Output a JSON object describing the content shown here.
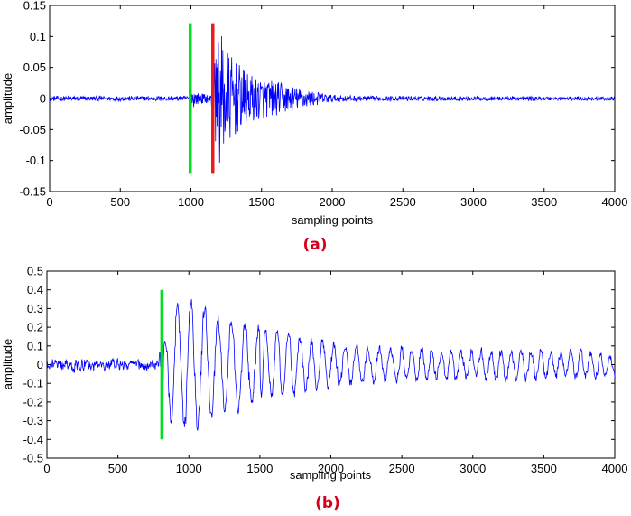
{
  "colors": {
    "signal": "#0000ff",
    "marker_green": "#00dd22",
    "marker_red": "#e81c1c",
    "caption": "#d6001c"
  },
  "chart_data": [
    {
      "type": "line",
      "caption": "(a)",
      "xlabel": "sampling points",
      "ylabel": "amplitude",
      "xlim": [
        0,
        4000
      ],
      "ylim": [
        -0.15,
        0.15
      ],
      "xticks": [
        0,
        500,
        1000,
        1500,
        2000,
        2500,
        3000,
        3500,
        4000
      ],
      "yticks": [
        -0.15,
        -0.1,
        -0.05,
        0,
        0.05,
        0.1,
        0.15
      ],
      "ytick_labels": [
        "-0.15",
        "-0.1",
        "-0.05",
        "0",
        "0.05",
        "0.1",
        "0.15"
      ],
      "grid": false,
      "series": [
        {
          "color": "#0000ff",
          "envelope": [
            {
              "x": 0,
              "amp": 0.004
            },
            {
              "x": 950,
              "amp": 0.004
            },
            {
              "x": 995,
              "amp": 0.005
            },
            {
              "x": 1000,
              "amp": 0.022
            },
            {
              "x": 1030,
              "amp": 0.01
            },
            {
              "x": 1140,
              "amp": 0.006
            },
            {
              "x": 1160,
              "amp": 0.05
            },
            {
              "x": 1200,
              "amp": 0.11
            },
            {
              "x": 1280,
              "amp": 0.07
            },
            {
              "x": 1400,
              "amp": 0.04
            },
            {
              "x": 1600,
              "amp": 0.028
            },
            {
              "x": 1800,
              "amp": 0.015
            },
            {
              "x": 2000,
              "amp": 0.006
            },
            {
              "x": 2200,
              "amp": 0.004
            },
            {
              "x": 4000,
              "amp": 0.003
            }
          ]
        }
      ],
      "markers": [
        {
          "x": 995,
          "y_range": [
            -0.12,
            0.12
          ],
          "color": "#00dd22"
        },
        {
          "x": 1155,
          "y_range": [
            -0.12,
            0.12
          ],
          "color": "#e81c1c"
        }
      ]
    },
    {
      "type": "line",
      "caption": "(b)",
      "xlabel": "sampling points",
      "ylabel": "amplitude",
      "xlim": [
        0,
        4000
      ],
      "ylim": [
        -0.5,
        0.5
      ],
      "xticks": [
        0,
        500,
        1000,
        1500,
        2000,
        2500,
        3000,
        3500,
        4000
      ],
      "yticks": [
        -0.5,
        -0.4,
        -0.3,
        -0.2,
        -0.1,
        0,
        0.1,
        0.2,
        0.3,
        0.4,
        0.5
      ],
      "ytick_labels": [
        "-0.5",
        "-0.4",
        "-0.3",
        "-0.2",
        "-0.1",
        "0",
        "0.1",
        "0.2",
        "0.3",
        "0.4",
        "0.5"
      ],
      "grid": false,
      "series": [
        {
          "color": "#0000ff",
          "envelope": [
            {
              "x": 0,
              "amp": 0.03
            },
            {
              "x": 780,
              "amp": 0.03
            },
            {
              "x": 830,
              "amp": 0.2
            },
            {
              "x": 880,
              "amp": 0.38
            },
            {
              "x": 1030,
              "amp": 0.42
            },
            {
              "x": 1200,
              "amp": 0.3
            },
            {
              "x": 1450,
              "amp": 0.25
            },
            {
              "x": 1800,
              "amp": 0.17
            },
            {
              "x": 2100,
              "amp": 0.12
            },
            {
              "x": 2600,
              "amp": 0.09
            },
            {
              "x": 3200,
              "amp": 0.09
            },
            {
              "x": 3700,
              "amp": 0.08
            },
            {
              "x": 4000,
              "amp": 0.07
            }
          ]
        }
      ],
      "markers": [
        {
          "x": 810,
          "y_range": [
            -0.4,
            0.4
          ],
          "color": "#00dd22"
        }
      ]
    }
  ]
}
